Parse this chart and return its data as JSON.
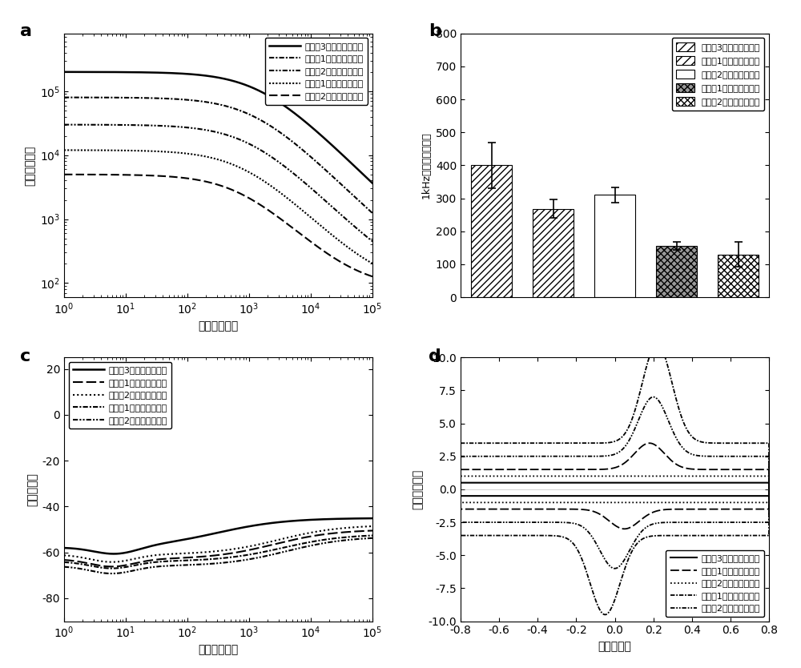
{
  "panel_a": {
    "xlabel": "频率（赫兹）",
    "ylabel": "阻抗（欧姆）",
    "xlim": [
      1,
      100000
    ],
    "ylim_log": [
      1.8,
      5.7
    ],
    "legend": [
      "对比例3制备的神经电极",
      "实施例1制备的神经电极",
      "实施例2制备的神经电极",
      "对比例1制备的神经电极",
      "对比例2制备的神经电极"
    ]
  },
  "panel_b": {
    "ylabel": "1kHz处阻抗（欧姆）",
    "ylim": [
      0,
      800
    ],
    "bars": [
      {
        "label": "对比例3制备的神经电极",
        "value": 400,
        "err": 70
      },
      {
        "label": "对比例1制备的神经电极",
        "value": 268,
        "err": 28
      },
      {
        "label": "对比例2制备的神经电极",
        "value": 310,
        "err": 22
      },
      {
        "label": "实施例1制备的神经电极",
        "value": 155,
        "err": 12
      },
      {
        "label": "实施例2制备的神经电极",
        "value": 130,
        "err": 38
      }
    ]
  },
  "panel_c": {
    "xlabel": "频率（赫兹）",
    "ylabel": "相位（度）",
    "xlim": [
      1,
      100000
    ],
    "ylim": [
      -90,
      25
    ],
    "yticks": [
      -80,
      -60,
      -40,
      -20,
      0,
      20
    ],
    "legend": [
      "对比例3制备的神经电极",
      "实施例1制备的神经电极",
      "实施例2制备的神经电极",
      "对比例1制备的神经电极",
      "对比例2制备的神经电极"
    ]
  },
  "panel_d": {
    "xlabel": "电压（伏）",
    "ylabel": "电流（微安）",
    "xlim": [
      -0.8,
      0.8
    ],
    "ylim": [
      -10,
      10
    ],
    "legend": [
      "对比例3制备的神经电极",
      "对比例1制备的神经电极",
      "对比例2制备的神经电极",
      "实施例1制备的神经电极",
      "实施例2制备的神经电极"
    ]
  }
}
